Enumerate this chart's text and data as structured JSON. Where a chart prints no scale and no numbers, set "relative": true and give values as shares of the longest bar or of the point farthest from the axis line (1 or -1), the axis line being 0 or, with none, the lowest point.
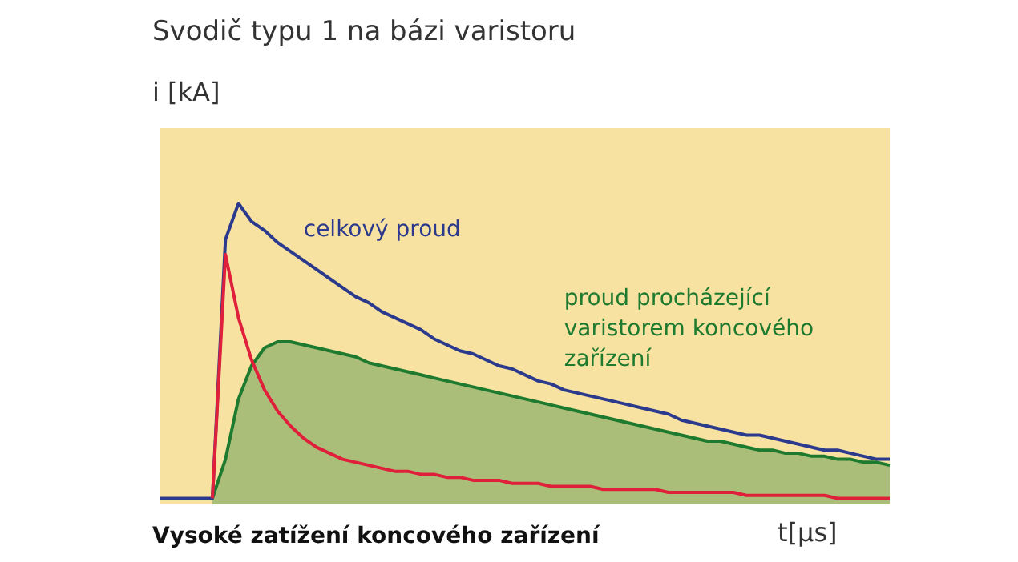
{
  "chart_data": {
    "type": "line",
    "relative": true,
    "title": "Svodič typu 1 na bázi varistoru",
    "ylabel": "i [kA]",
    "xlabel": "t[μs]",
    "annotations": [
      "Vysoké zatížení koncového zařízení"
    ],
    "categories": [
      null,
      null,
      null,
      null,
      null,
      null,
      null,
      null,
      null,
      null,
      null,
      null,
      null,
      null,
      null,
      null,
      null,
      null,
      null,
      null,
      null,
      null,
      null,
      null,
      null,
      null,
      null,
      null,
      null,
      null,
      null,
      null,
      null,
      null,
      null,
      null,
      null,
      null,
      null,
      null,
      null,
      null,
      null,
      null,
      null,
      null,
      null,
      null,
      null,
      null,
      null,
      null,
      null,
      null,
      null,
      null,
      null
    ],
    "series": [
      {
        "name": "proud procházející varistorem koncového zařízení",
        "type": "area",
        "color": "#1e7a2e",
        "values": [
          null,
          null,
          null,
          null,
          0.02,
          0.15,
          0.35,
          0.46,
          0.52,
          0.54,
          0.54,
          0.53,
          0.52,
          0.51,
          0.5,
          0.49,
          0.47,
          0.46,
          0.45,
          0.44,
          0.43,
          0.42,
          0.41,
          0.4,
          0.39,
          0.38,
          0.37,
          0.36,
          0.35,
          0.34,
          0.33,
          0.32,
          0.31,
          0.3,
          0.29,
          0.28,
          0.27,
          0.26,
          0.25,
          0.24,
          0.23,
          0.22,
          0.21,
          0.21,
          0.2,
          0.19,
          0.18,
          0.18,
          0.17,
          0.17,
          0.16,
          0.16,
          0.15,
          0.15,
          0.14,
          0.14,
          0.13
        ]
      },
      {
        "name": "celkový proud",
        "color": "#2b3a8c",
        "values": [
          0.02,
          0.02,
          0.02,
          0.02,
          0.02,
          0.88,
          1,
          0.94,
          0.91,
          0.87,
          0.84,
          0.81,
          0.78,
          0.75,
          0.72,
          0.69,
          0.67,
          0.64,
          0.62,
          0.6,
          0.58,
          0.55,
          0.53,
          0.51,
          0.5,
          0.48,
          0.46,
          0.45,
          0.43,
          0.41,
          0.4,
          0.38,
          0.37,
          0.36,
          0.35,
          0.34,
          0.33,
          0.32,
          0.31,
          0.3,
          0.28,
          0.27,
          0.26,
          0.25,
          0.24,
          0.23,
          0.23,
          0.22,
          0.21,
          0.2,
          0.19,
          0.18,
          0.18,
          0.17,
          0.16,
          0.15,
          0.15
        ]
      },
      {
        "color": "#e0203a",
        "values": [
          null,
          null,
          null,
          null,
          0.02,
          0.83,
          0.62,
          0.48,
          0.38,
          0.31,
          0.26,
          0.22,
          0.19,
          0.17,
          0.15,
          0.14,
          0.13,
          0.12,
          0.11,
          0.11,
          0.1,
          0.1,
          0.09,
          0.09,
          0.08,
          0.08,
          0.08,
          0.07,
          0.07,
          0.07,
          0.06,
          0.06,
          0.06,
          0.06,
          0.05,
          0.05,
          0.05,
          0.05,
          0.05,
          0.04,
          0.04,
          0.04,
          0.04,
          0.04,
          0.04,
          0.03,
          0.03,
          0.03,
          0.03,
          0.03,
          0.03,
          0.03,
          0.02,
          0.02,
          0.02,
          0.02,
          0.02
        ]
      }
    ]
  }
}
